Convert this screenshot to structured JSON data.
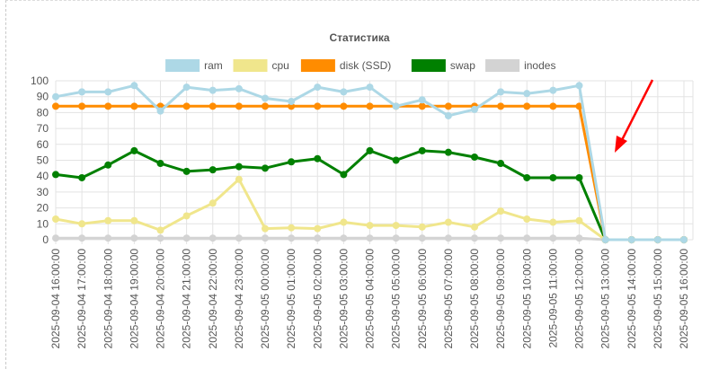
{
  "chart_data": {
    "type": "line",
    "title": "Статистика",
    "xlabel": "",
    "ylabel": "",
    "ylim": [
      0,
      100
    ],
    "yticks": [
      0,
      10,
      20,
      30,
      40,
      50,
      60,
      70,
      80,
      90,
      100
    ],
    "grid": true,
    "legend": "top",
    "x": [
      "2025-09-04 16:00:00",
      "2025-09-04 17:00:00",
      "2025-09-04 18:00:00",
      "2025-09-04 19:00:00",
      "2025-09-04 20:00:00",
      "2025-09-04 21:00:00",
      "2025-09-04 22:00:00",
      "2025-09-04 23:00:00",
      "2025-09-05 00:00:00",
      "2025-09-05 01:00:00",
      "2025-09-05 02:00:00",
      "2025-09-05 03:00:00",
      "2025-09-05 04:00:00",
      "2025-09-05 05:00:00",
      "2025-09-05 06:00:00",
      "2025-09-05 07:00:00",
      "2025-09-05 08:00:00",
      "2025-09-05 09:00:00",
      "2025-09-05 10:00:00",
      "2025-09-05 11:00:00",
      "2025-09-05 12:00:00",
      "2025-09-05 13:00:00",
      "2025-09-05 14:00:00",
      "2025-09-05 15:00:00",
      "2025-09-05 16:00:00"
    ],
    "series": [
      {
        "name": "ram",
        "color": "#add8e6",
        "values": [
          90,
          93,
          93,
          97,
          81,
          96,
          94,
          95,
          89,
          87,
          96,
          93,
          96,
          84,
          88,
          78,
          82,
          93,
          92,
          94,
          97,
          0,
          0,
          0,
          0
        ]
      },
      {
        "name": "cpu",
        "color": "#f0e68c",
        "values": [
          13,
          10,
          12,
          12,
          6,
          15,
          23,
          38,
          7,
          7.5,
          7,
          11,
          9,
          9,
          8,
          11,
          8,
          18,
          13,
          11,
          12,
          0,
          0,
          0,
          0
        ]
      },
      {
        "name": "disk (SSD)",
        "color": "#ff8c00",
        "values": [
          84,
          84,
          84,
          84,
          84,
          84,
          84,
          84,
          84,
          84,
          84,
          84,
          84,
          84,
          84,
          84,
          84,
          84,
          84,
          84,
          84,
          0,
          0,
          0,
          0
        ]
      },
      {
        "name": "swap",
        "color": "#008000",
        "values": [
          41,
          39,
          47,
          56,
          48,
          43,
          44,
          46,
          45,
          49,
          51,
          41,
          56,
          50,
          56,
          55,
          52,
          48,
          39,
          39,
          39,
          0,
          0,
          0,
          0
        ]
      },
      {
        "name": "inodes",
        "color": "#d3d3d3",
        "values": [
          1,
          1,
          1,
          1,
          1,
          1,
          1,
          1,
          1,
          1,
          1,
          1,
          1,
          1,
          1,
          1,
          1,
          1,
          1,
          1,
          1,
          0,
          0,
          0,
          0
        ]
      }
    ],
    "annotation_arrow_color": "#ff0000"
  }
}
